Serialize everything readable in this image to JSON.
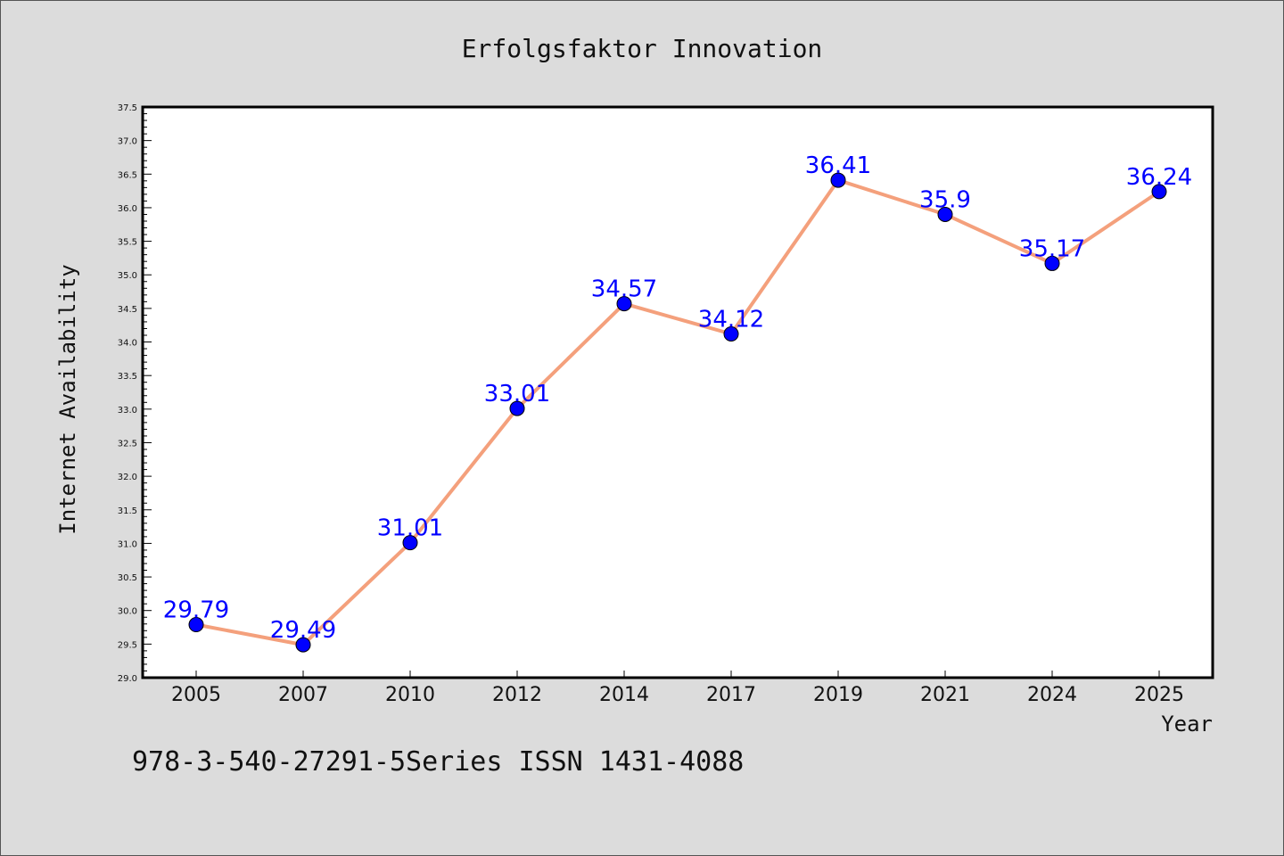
{
  "chart_data": {
    "type": "line",
    "title": "Erfolgsfaktor Innovation",
    "xlabel": "Year",
    "ylabel": "Internet Availability",
    "categories": [
      "2005",
      "2007",
      "2010",
      "2012",
      "2014",
      "2017",
      "2019",
      "2021",
      "2024",
      "2025"
    ],
    "values": [
      29.79,
      29.49,
      31.01,
      33.01,
      34.57,
      34.12,
      36.41,
      35.9,
      35.17,
      36.24
    ],
    "data_labels": [
      "29.79",
      "29.49",
      "31.01",
      "33.01",
      "34.57",
      "34.12",
      "36.41",
      "35.9",
      "35.17",
      "36.24"
    ],
    "ylim": [
      29.0,
      37.5
    ],
    "yticks": [
      "29.0",
      "29.5",
      "30.0",
      "30.5",
      "31.0",
      "31.5",
      "32.0",
      "32.5",
      "33.0",
      "33.5",
      "34.0",
      "34.5",
      "35.0",
      "35.5",
      "36.0",
      "36.5",
      "37.0",
      "37.5"
    ],
    "grid": false,
    "line_color": "#f4a07c",
    "marker_color": "#0000ff",
    "label_color": "#0000ff"
  },
  "footer": "978-3-540-27291-5Series ISSN 1431-4088"
}
